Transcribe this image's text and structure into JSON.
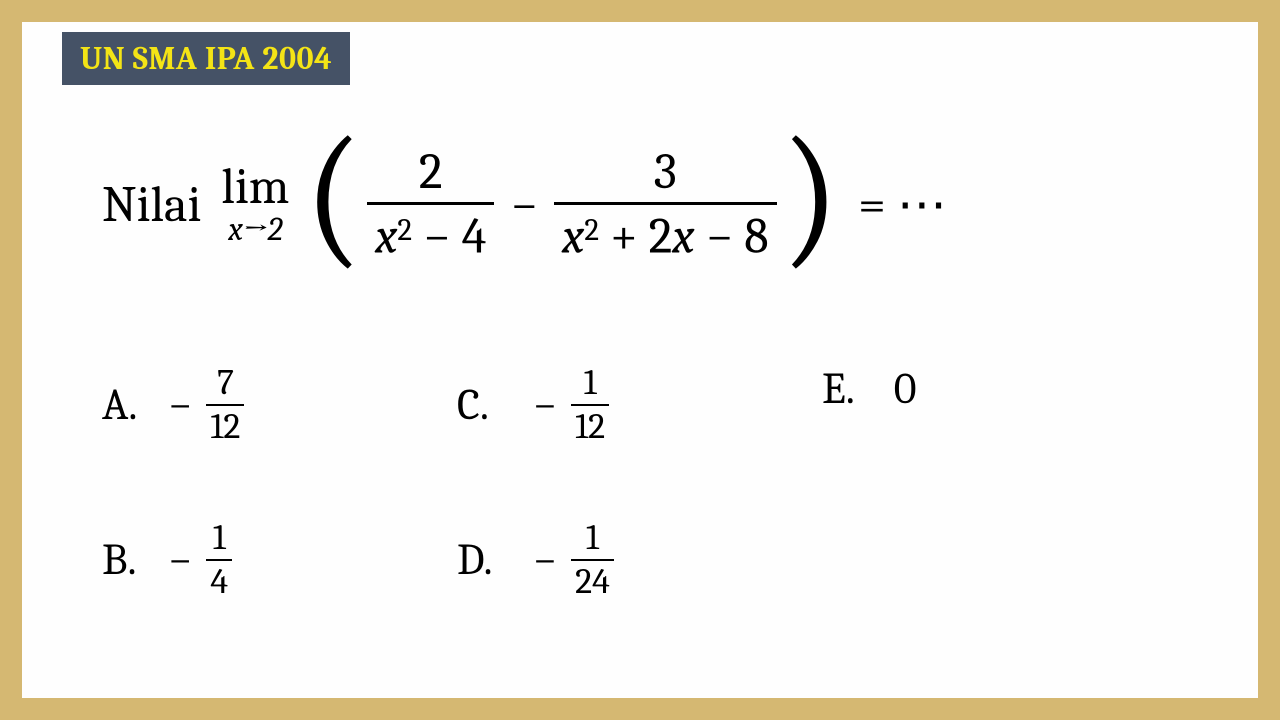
{
  "badge": "UN SMA IPA 2004",
  "question": {
    "prefix": "Nilai",
    "limit_symbol": "lim",
    "limit_sub_var": "x",
    "limit_sub_arrow": "→",
    "limit_sub_target": "2",
    "paren_open": "(",
    "frac1_num": "2",
    "frac1_den_var": "x",
    "frac1_den_sup": "2",
    "frac1_den_rest": " − 4",
    "minus": "−",
    "frac2_num": "3",
    "frac2_den_var1": "x",
    "frac2_den_sup": "2",
    "frac2_den_mid": " + 2",
    "frac2_den_var2": "x",
    "frac2_den_rest": " − 8",
    "paren_close": ")",
    "tail": "= ⋯"
  },
  "options": {
    "A": {
      "label": "A.",
      "sign": "−",
      "num": "7",
      "den": "12"
    },
    "B": {
      "label": "B.",
      "sign": "−",
      "num": "1",
      "den": "4"
    },
    "C": {
      "label": "C.",
      "sign": "−",
      "num": "1",
      "den": "12"
    },
    "D": {
      "label": "D.",
      "sign": "−",
      "num": "1",
      "den": "24"
    },
    "E": {
      "label": "E.",
      "value": "0"
    }
  },
  "colors": {
    "border": "#d5b872",
    "page_bg": "#fefefe",
    "badge_bg": "#455266",
    "badge_fg": "#f4e416",
    "text": "#000000"
  }
}
